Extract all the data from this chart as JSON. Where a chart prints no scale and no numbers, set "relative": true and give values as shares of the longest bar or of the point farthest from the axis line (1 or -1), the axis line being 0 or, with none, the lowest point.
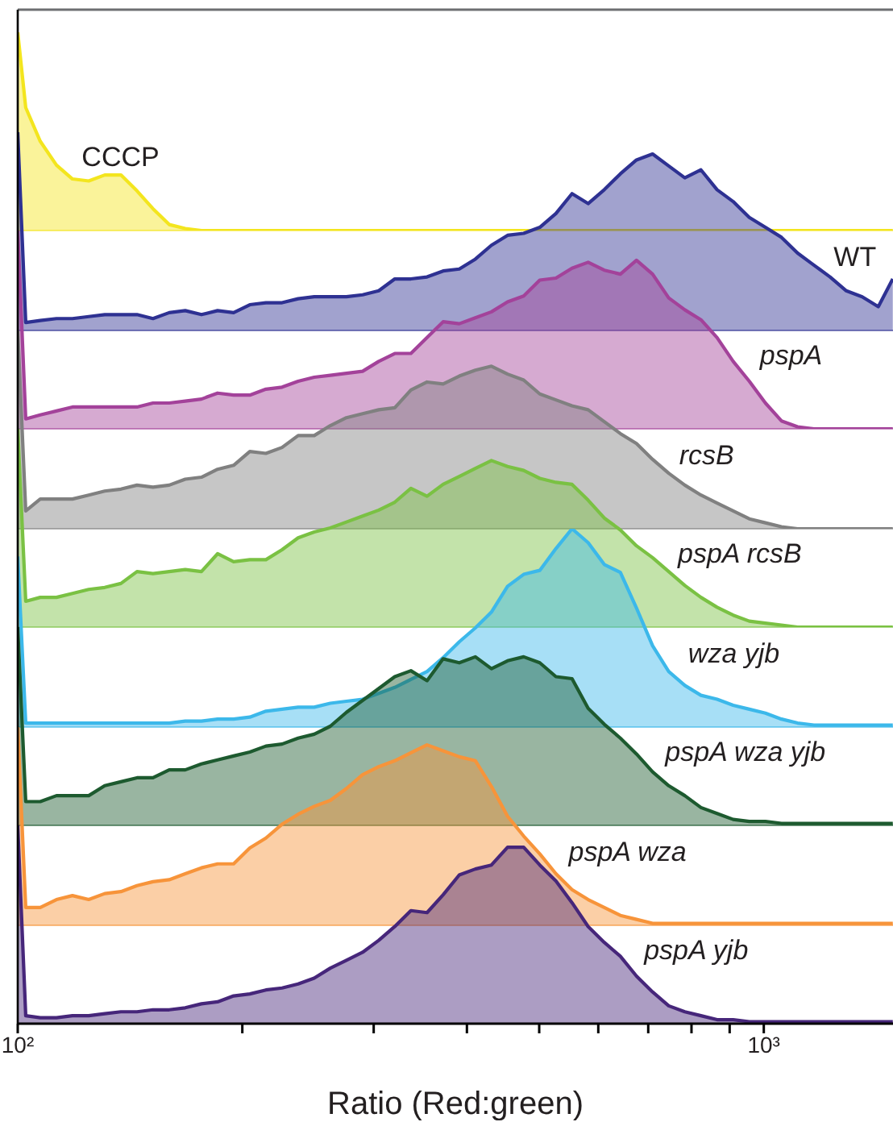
{
  "chart_data": [
    {
      "type": "area",
      "relative": true,
      "log": "x",
      "xlim": [
        100,
        1490
      ],
      "tick_labels": false,
      "x": [
        100,
        102.5,
        107.2,
        112.7,
        118.4,
        124.5,
        130.8,
        137.5,
        144.5,
        151.8,
        159.6,
        167.7,
        176.3,
        185.3,
        194.7,
        204.7,
        215.1,
        226.1,
        237.6,
        249.7,
        262.4,
        275.8,
        289.9,
        304.7,
        320.2,
        336.5,
        353.7,
        371.7,
        390.7,
        410.6,
        431.5,
        453.5,
        476.6,
        500.9,
        526.5,
        553.3,
        581.5,
        611.2,
        642.3,
        675.1,
        709.5,
        745.7,
        783.7,
        823.7,
        865.7,
        909.9,
        956.3,
        1005,
        1056,
        1110,
        1167,
        1227,
        1290,
        1355,
        1424,
        1489
      ],
      "series": [
        {
          "name": "CCCP",
          "color": "#f3e51e",
          "values": [
            1,
            0.62,
            0.45,
            0.33,
            0.26,
            0.25,
            0.28,
            0.28,
            0.2,
            0.11,
            0.03,
            0.01,
            0,
            0,
            0,
            0,
            0,
            0,
            0,
            0,
            0,
            0,
            0,
            0,
            0,
            0,
            0,
            0,
            0,
            0,
            0,
            0,
            0,
            0,
            0,
            0,
            0,
            0,
            0,
            0,
            0,
            0,
            0,
            0,
            0,
            0,
            0,
            0,
            0,
            0,
            0,
            0,
            0,
            0,
            0,
            0
          ]
        }
      ]
    },
    {
      "type": "area",
      "relative": true,
      "log": "x",
      "xlim": [
        100,
        1490
      ],
      "tick_labels": false,
      "x": [
        100,
        102.5,
        107.2,
        112.7,
        118.4,
        124.5,
        130.8,
        137.5,
        144.5,
        151.8,
        159.6,
        167.7,
        176.3,
        185.3,
        194.7,
        204.7,
        215.1,
        226.1,
        237.6,
        249.7,
        262.4,
        275.8,
        289.9,
        304.7,
        320.2,
        336.5,
        353.7,
        371.7,
        390.7,
        410.6,
        431.5,
        453.5,
        476.6,
        500.9,
        526.5,
        553.3,
        581.5,
        611.2,
        642.3,
        675.1,
        709.5,
        745.7,
        783.7,
        823.7,
        865.7,
        909.9,
        956.3,
        1005,
        1056,
        1110,
        1167,
        1227,
        1290,
        1355,
        1424,
        1489
      ],
      "series": [
        {
          "name": "WT",
          "color": "#2e3192",
          "values": [
            1,
            0.04,
            0.05,
            0.06,
            0.06,
            0.07,
            0.08,
            0.08,
            0.08,
            0.06,
            0.09,
            0.1,
            0.08,
            0.1,
            0.09,
            0.13,
            0.14,
            0.14,
            0.16,
            0.17,
            0.17,
            0.17,
            0.18,
            0.2,
            0.26,
            0.26,
            0.27,
            0.3,
            0.31,
            0.36,
            0.43,
            0.48,
            0.49,
            0.52,
            0.59,
            0.69,
            0.64,
            0.71,
            0.79,
            0.86,
            0.89,
            0.83,
            0.77,
            0.81,
            0.71,
            0.65,
            0.57,
            0.52,
            0.47,
            0.39,
            0.33,
            0.27,
            0.2,
            0.17,
            0.12,
            0.26
          ]
        }
      ]
    },
    {
      "type": "area",
      "relative": true,
      "log": "x",
      "xlim": [
        100,
        1490
      ],
      "tick_labels": false,
      "x": [
        100,
        102.5,
        107.2,
        112.7,
        118.4,
        124.5,
        130.8,
        137.5,
        144.5,
        151.8,
        159.6,
        167.7,
        176.3,
        185.3,
        194.7,
        204.7,
        215.1,
        226.1,
        237.6,
        249.7,
        262.4,
        275.8,
        289.9,
        304.7,
        320.2,
        336.5,
        353.7,
        371.7,
        390.7,
        410.6,
        431.5,
        453.5,
        476.6,
        500.9,
        526.5,
        553.3,
        581.5,
        611.2,
        642.3,
        675.1,
        709.5,
        745.7,
        783.7,
        823.7,
        865.7,
        909.9,
        956.3,
        1005,
        1056,
        1110,
        1167,
        1227,
        1290,
        1355,
        1424,
        1489
      ],
      "series": [
        {
          "name": "pspA",
          "color": "#a3429a",
          "values": [
            1,
            0.05,
            0.07,
            0.09,
            0.11,
            0.11,
            0.11,
            0.11,
            0.11,
            0.13,
            0.13,
            0.14,
            0.15,
            0.18,
            0.17,
            0.17,
            0.2,
            0.21,
            0.24,
            0.26,
            0.27,
            0.28,
            0.29,
            0.34,
            0.38,
            0.38,
            0.46,
            0.54,
            0.53,
            0.56,
            0.59,
            0.64,
            0.67,
            0.75,
            0.76,
            0.81,
            0.84,
            0.8,
            0.78,
            0.85,
            0.78,
            0.66,
            0.6,
            0.55,
            0.46,
            0.34,
            0.24,
            0.13,
            0.04,
            0.01,
            0,
            0,
            0,
            0,
            0,
            0
          ]
        }
      ]
    },
    {
      "type": "area",
      "relative": true,
      "log": "x",
      "xlim": [
        100,
        1490
      ],
      "tick_labels": false,
      "x": [
        100,
        102.5,
        107.2,
        112.7,
        118.4,
        124.5,
        130.8,
        137.5,
        144.5,
        151.8,
        159.6,
        167.7,
        176.3,
        185.3,
        194.7,
        204.7,
        215.1,
        226.1,
        237.6,
        249.7,
        262.4,
        275.8,
        289.9,
        304.7,
        320.2,
        336.5,
        353.7,
        371.7,
        390.7,
        410.6,
        431.5,
        453.5,
        476.6,
        500.9,
        526.5,
        553.3,
        581.5,
        611.2,
        642.3,
        675.1,
        709.5,
        745.7,
        783.7,
        823.7,
        865.7,
        909.9,
        956.3,
        1005,
        1056,
        1110,
        1167,
        1227,
        1290,
        1355,
        1424,
        1489
      ],
      "series": [
        {
          "name": "rcsB",
          "color": "#808080",
          "values": [
            1,
            0.09,
            0.15,
            0.15,
            0.15,
            0.17,
            0.19,
            0.2,
            0.22,
            0.21,
            0.22,
            0.25,
            0.26,
            0.3,
            0.32,
            0.39,
            0.38,
            0.41,
            0.47,
            0.47,
            0.52,
            0.56,
            0.58,
            0.6,
            0.61,
            0.7,
            0.74,
            0.73,
            0.77,
            0.8,
            0.82,
            0.78,
            0.75,
            0.68,
            0.65,
            0.62,
            0.6,
            0.54,
            0.48,
            0.43,
            0.35,
            0.28,
            0.22,
            0.17,
            0.13,
            0.09,
            0.05,
            0.03,
            0.01,
            0,
            0,
            0,
            0,
            0,
            0,
            0
          ]
        }
      ]
    },
    {
      "type": "area",
      "relative": true,
      "log": "x",
      "xlim": [
        100,
        1490
      ],
      "tick_labels": false,
      "x": [
        100,
        102.5,
        107.2,
        112.7,
        118.4,
        124.5,
        130.8,
        137.5,
        144.5,
        151.8,
        159.6,
        167.7,
        176.3,
        185.3,
        194.7,
        204.7,
        215.1,
        226.1,
        237.6,
        249.7,
        262.4,
        275.8,
        289.9,
        304.7,
        320.2,
        336.5,
        353.7,
        371.7,
        390.7,
        410.6,
        431.5,
        453.5,
        476.6,
        500.9,
        526.5,
        553.3,
        581.5,
        611.2,
        642.3,
        675.1,
        709.5,
        745.7,
        783.7,
        823.7,
        865.7,
        909.9,
        956.3,
        1005,
        1056,
        1110,
        1167,
        1227,
        1290,
        1355,
        1424,
        1489
      ],
      "series": [
        {
          "name": "pspA rcsB",
          "color": "#7ac143",
          "values": [
            1,
            0.13,
            0.15,
            0.15,
            0.17,
            0.19,
            0.2,
            0.22,
            0.28,
            0.27,
            0.28,
            0.29,
            0.28,
            0.37,
            0.33,
            0.34,
            0.34,
            0.39,
            0.45,
            0.48,
            0.5,
            0.53,
            0.56,
            0.59,
            0.63,
            0.7,
            0.66,
            0.72,
            0.76,
            0.8,
            0.84,
            0.81,
            0.79,
            0.75,
            0.73,
            0.72,
            0.64,
            0.55,
            0.49,
            0.41,
            0.35,
            0.28,
            0.21,
            0.15,
            0.1,
            0.06,
            0.03,
            0.02,
            0.01,
            0,
            0,
            0,
            0,
            0,
            0,
            0
          ]
        }
      ]
    },
    {
      "type": "area",
      "relative": true,
      "log": "x",
      "xlim": [
        100,
        1490
      ],
      "tick_labels": false,
      "x": [
        100,
        102.5,
        107.2,
        112.7,
        118.4,
        124.5,
        130.8,
        137.5,
        144.5,
        151.8,
        159.6,
        167.7,
        176.3,
        185.3,
        194.7,
        204.7,
        215.1,
        226.1,
        237.6,
        249.7,
        262.4,
        275.8,
        289.9,
        304.7,
        320.2,
        336.5,
        353.7,
        371.7,
        390.7,
        410.6,
        431.5,
        453.5,
        476.6,
        500.9,
        526.5,
        553.3,
        581.5,
        611.2,
        642.3,
        675.1,
        709.5,
        745.7,
        783.7,
        823.7,
        865.7,
        909.9,
        956.3,
        1005,
        1056,
        1110,
        1167,
        1227,
        1290,
        1355,
        1424,
        1489
      ],
      "series": [
        {
          "name": "wza yjb",
          "color": "#3cb8ea",
          "values": [
            0.86,
            0.02,
            0.02,
            0.02,
            0.02,
            0.02,
            0.02,
            0.02,
            0.02,
            0.02,
            0.02,
            0.03,
            0.03,
            0.04,
            0.04,
            0.05,
            0.08,
            0.09,
            0.1,
            0.1,
            0.12,
            0.13,
            0.14,
            0.17,
            0.2,
            0.24,
            0.28,
            0.35,
            0.43,
            0.5,
            0.58,
            0.71,
            0.77,
            0.79,
            0.9,
            1,
            0.93,
            0.82,
            0.78,
            0.6,
            0.41,
            0.28,
            0.21,
            0.16,
            0.14,
            0.11,
            0.09,
            0.07,
            0.04,
            0.02,
            0.01,
            0.01,
            0.01,
            0.01,
            0.01,
            0.01
          ]
        }
      ]
    },
    {
      "type": "area",
      "relative": true,
      "log": "x",
      "xlim": [
        100,
        1490
      ],
      "tick_labels": false,
      "x": [
        100,
        102.5,
        107.2,
        112.7,
        118.4,
        124.5,
        130.8,
        137.5,
        144.5,
        151.8,
        159.6,
        167.7,
        176.3,
        185.3,
        194.7,
        204.7,
        215.1,
        226.1,
        237.6,
        249.7,
        262.4,
        275.8,
        289.9,
        304.7,
        320.2,
        336.5,
        353.7,
        371.7,
        390.7,
        410.6,
        431.5,
        453.5,
        476.6,
        500.9,
        526.5,
        553.3,
        581.5,
        611.2,
        642.3,
        675.1,
        709.5,
        745.7,
        783.7,
        823.7,
        865.7,
        909.9,
        956.3,
        1005,
        1056,
        1110,
        1167,
        1227,
        1290,
        1355,
        1424,
        1489
      ],
      "series": [
        {
          "name": "pspA wza yjb",
          "color": "#1d5a2f",
          "values": [
            1,
            0.12,
            0.12,
            0.15,
            0.15,
            0.15,
            0.2,
            0.22,
            0.24,
            0.24,
            0.28,
            0.28,
            0.31,
            0.33,
            0.35,
            0.37,
            0.4,
            0.41,
            0.44,
            0.46,
            0.5,
            0.57,
            0.63,
            0.69,
            0.75,
            0.78,
            0.73,
            0.84,
            0.82,
            0.85,
            0.79,
            0.83,
            0.85,
            0.82,
            0.75,
            0.74,
            0.59,
            0.51,
            0.44,
            0.36,
            0.27,
            0.2,
            0.15,
            0.09,
            0.06,
            0.03,
            0.02,
            0.02,
            0.01,
            0.01,
            0.01,
            0.01,
            0.01,
            0.01,
            0.01,
            0.01
          ]
        }
      ]
    },
    {
      "type": "area",
      "relative": true,
      "log": "x",
      "xlim": [
        100,
        1490
      ],
      "tick_labels": false,
      "x": [
        100,
        102.5,
        107.2,
        112.7,
        118.4,
        124.5,
        130.8,
        137.5,
        144.5,
        151.8,
        159.6,
        167.7,
        176.3,
        185.3,
        194.7,
        204.7,
        215.1,
        226.1,
        237.6,
        249.7,
        262.4,
        275.8,
        289.9,
        304.7,
        320.2,
        336.5,
        353.7,
        371.7,
        390.7,
        410.6,
        431.5,
        453.5,
        476.6,
        500.9,
        526.5,
        553.3,
        581.5,
        611.2,
        642.3,
        675.1,
        709.5,
        745.7,
        783.7,
        823.7,
        865.7,
        909.9,
        956.3,
        1005,
        1056,
        1110,
        1167,
        1227,
        1290,
        1355,
        1424,
        1489
      ],
      "series": [
        {
          "name": "pspA wza",
          "color": "#f7943a",
          "values": [
            1,
            0.09,
            0.09,
            0.13,
            0.15,
            0.13,
            0.16,
            0.17,
            0.2,
            0.22,
            0.23,
            0.26,
            0.29,
            0.31,
            0.31,
            0.39,
            0.44,
            0.51,
            0.56,
            0.6,
            0.63,
            0.69,
            0.76,
            0.8,
            0.83,
            0.87,
            0.91,
            0.88,
            0.85,
            0.83,
            0.7,
            0.55,
            0.45,
            0.36,
            0.26,
            0.18,
            0.13,
            0.09,
            0.05,
            0.03,
            0.01,
            0.01,
            0.01,
            0.01,
            0.01,
            0.01,
            0.01,
            0.01,
            0.01,
            0.01,
            0.01,
            0.01,
            0.01,
            0.01,
            0.01,
            0.01
          ]
        }
      ]
    },
    {
      "type": "area",
      "relative": true,
      "log": "x",
      "xlim": [
        100,
        1490
      ],
      "xlabel": "Ratio (Red:green)",
      "xticks": [
        {
          "value": 100,
          "label": "10²"
        },
        {
          "value": 200,
          "label": null
        },
        {
          "value": 300,
          "label": null
        },
        {
          "value": 400,
          "label": null
        },
        {
          "value": 500,
          "label": null
        },
        {
          "value": 600,
          "label": null
        },
        {
          "value": 700,
          "label": null
        },
        {
          "value": 800,
          "label": null
        },
        {
          "value": 900,
          "label": null
        },
        {
          "value": 1000,
          "label": "10³"
        }
      ],
      "x": [
        100,
        102.5,
        107.2,
        112.7,
        118.4,
        124.5,
        130.8,
        137.5,
        144.5,
        151.8,
        159.6,
        167.7,
        176.3,
        185.3,
        194.7,
        204.7,
        215.1,
        226.1,
        237.6,
        249.7,
        262.4,
        275.8,
        289.9,
        304.7,
        320.2,
        336.5,
        353.7,
        371.7,
        390.7,
        410.6,
        431.5,
        453.5,
        476.6,
        500.9,
        526.5,
        553.3,
        581.5,
        611.2,
        642.3,
        675.1,
        709.5,
        745.7,
        783.7,
        823.7,
        865.7,
        909.9,
        956.3,
        1005,
        1056,
        1110,
        1167,
        1227,
        1290,
        1355,
        1424,
        1489
      ],
      "series": [
        {
          "name": "pspA yjb",
          "color": "#46267a",
          "values": [
            1,
            0.04,
            0.03,
            0.03,
            0.04,
            0.04,
            0.05,
            0.06,
            0.06,
            0.07,
            0.07,
            0.08,
            0.1,
            0.11,
            0.14,
            0.15,
            0.17,
            0.18,
            0.2,
            0.23,
            0.28,
            0.32,
            0.36,
            0.42,
            0.49,
            0.57,
            0.56,
            0.65,
            0.75,
            0.78,
            0.8,
            0.89,
            0.89,
            0.8,
            0.72,
            0.61,
            0.49,
            0.41,
            0.34,
            0.24,
            0.16,
            0.09,
            0.06,
            0.04,
            0.02,
            0.02,
            0.01,
            0.01,
            0.01,
            0.01,
            0.01,
            0.01,
            0.01,
            0.01,
            0.01,
            0.01
          ]
        }
      ]
    }
  ]
}
